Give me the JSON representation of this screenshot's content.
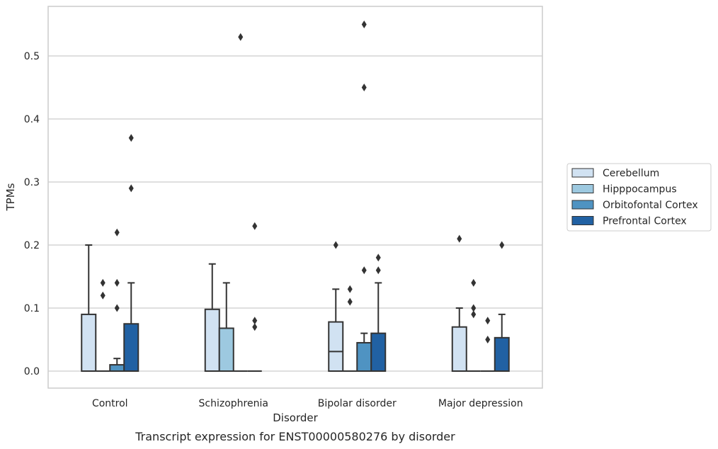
{
  "chart_data": {
    "type": "box",
    "xlabel": "Disorder",
    "ylabel": "TPMs",
    "caption": "Transcript expression for ENST00000580276 by disorder",
    "categories": [
      "Control",
      "Schizophrenia",
      "Bipolar disorder",
      "Major depression"
    ],
    "yticks": [
      "0.0",
      "0.1",
      "0.2",
      "0.3",
      "0.4",
      "0.5"
    ],
    "ylim": [
      -0.027,
      0.58
    ],
    "grid": true,
    "legend_position": "right",
    "series": [
      {
        "name": "Cerebellum",
        "color": "#d1e2f2"
      },
      {
        "name": "Hipppocampus",
        "color": "#9dc9e0"
      },
      {
        "name": "Orbitofontal Cortex",
        "color": "#4f93c2"
      },
      {
        "name": "Prefrontal Cortex",
        "color": "#2161a3"
      }
    ],
    "boxes": [
      [
        {
          "q1": 0,
          "median": 0,
          "q3": 0.09,
          "whislo": 0,
          "whishi": 0.2,
          "fliers": []
        },
        {
          "q1": 0,
          "median": 0,
          "q3": 0,
          "whislo": 0,
          "whishi": 0,
          "fliers": [
            0.12,
            0.14
          ]
        },
        {
          "q1": 0,
          "median": 0,
          "q3": 0.01,
          "whislo": 0,
          "whishi": 0.02,
          "fliers": [
            0.1,
            0.14,
            0.22
          ]
        },
        {
          "q1": 0,
          "median": 0,
          "q3": 0.075,
          "whislo": 0,
          "whishi": 0.14,
          "fliers": [
            0.29,
            0.37
          ]
        }
      ],
      [
        {
          "q1": 0,
          "median": 0,
          "q3": 0.098,
          "whislo": 0,
          "whishi": 0.17,
          "fliers": []
        },
        {
          "q1": 0,
          "median": 0,
          "q3": 0.068,
          "whislo": 0,
          "whishi": 0.14,
          "fliers": []
        },
        {
          "q1": 0,
          "median": 0,
          "q3": 0,
          "whislo": 0,
          "whishi": 0,
          "fliers": [
            0.53
          ]
        },
        {
          "q1": 0,
          "median": 0,
          "q3": 0,
          "whislo": 0,
          "whishi": 0,
          "fliers": [
            0.07,
            0.08,
            0.23
          ]
        }
      ],
      [
        {
          "q1": 0,
          "median": 0.031,
          "q3": 0.078,
          "whislo": 0,
          "whishi": 0.13,
          "fliers": [
            0.2
          ]
        },
        {
          "q1": 0,
          "median": 0,
          "q3": 0,
          "whislo": 0,
          "whishi": 0,
          "fliers": [
            0.11,
            0.13
          ]
        },
        {
          "q1": 0,
          "median": 0,
          "q3": 0.045,
          "whislo": 0,
          "whishi": 0.06,
          "fliers": [
            0.16,
            0.45,
            0.55
          ]
        },
        {
          "q1": 0,
          "median": 0,
          "q3": 0.06,
          "whislo": 0,
          "whishi": 0.14,
          "fliers": [
            0.16,
            0.18
          ]
        }
      ],
      [
        {
          "q1": 0,
          "median": 0,
          "q3": 0.07,
          "whislo": 0,
          "whishi": 0.1,
          "fliers": [
            0.21
          ]
        },
        {
          "q1": 0,
          "median": 0,
          "q3": 0,
          "whislo": 0,
          "whishi": 0,
          "fliers": [
            0.09,
            0.1,
            0.14
          ]
        },
        {
          "q1": 0,
          "median": 0,
          "q3": 0,
          "whislo": 0,
          "whishi": 0,
          "fliers": [
            0.05,
            0.08
          ]
        },
        {
          "q1": 0,
          "median": 0,
          "q3": 0.053,
          "whislo": 0,
          "whishi": 0.09,
          "fliers": [
            0.2
          ]
        }
      ]
    ]
  }
}
